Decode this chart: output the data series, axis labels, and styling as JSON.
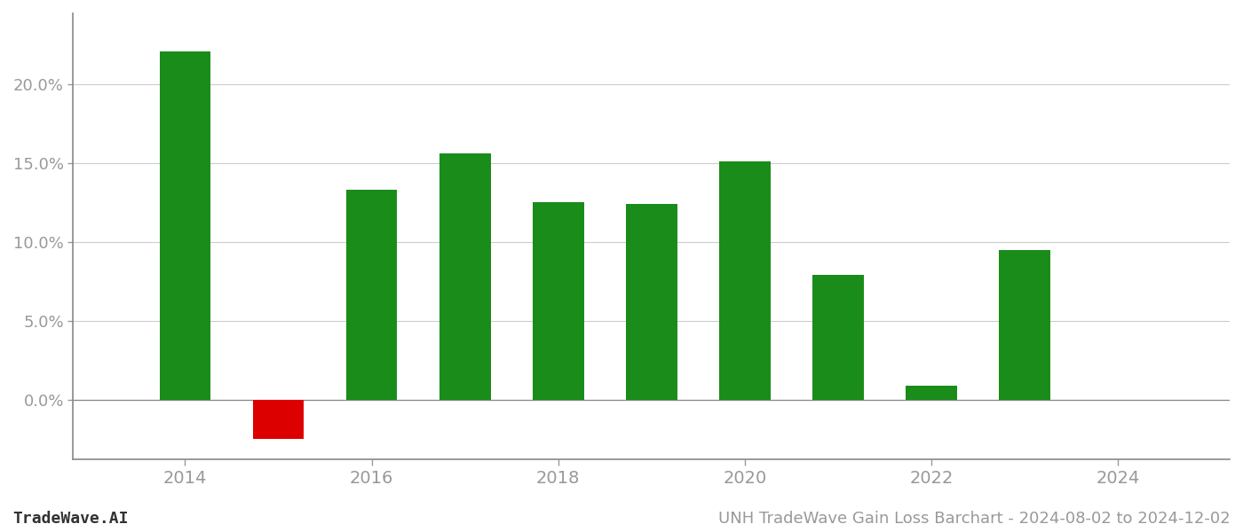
{
  "years": [
    2014,
    2015,
    2016,
    2017,
    2018,
    2019,
    2020,
    2021,
    2022,
    2023
  ],
  "values": [
    0.221,
    -0.025,
    0.133,
    0.156,
    0.125,
    0.124,
    0.151,
    0.079,
    0.009,
    0.095
  ],
  "bar_color_positive": "#1a8c1a",
  "bar_color_negative": "#dd0000",
  "background_color": "#ffffff",
  "grid_color": "#cccccc",
  "tick_color": "#999999",
  "spine_color": "#888888",
  "title": "UNH TradeWave Gain Loss Barchart - 2024-08-02 to 2024-12-02",
  "watermark": "TradeWave.AI",
  "title_fontsize": 13,
  "watermark_fontsize": 13,
  "ylim_min": -0.038,
  "ylim_max": 0.245,
  "yticks": [
    0.0,
    0.05,
    0.1,
    0.15,
    0.2
  ],
  "bar_width": 0.55,
  "xlim_min": 2012.8,
  "xlim_max": 2025.2
}
